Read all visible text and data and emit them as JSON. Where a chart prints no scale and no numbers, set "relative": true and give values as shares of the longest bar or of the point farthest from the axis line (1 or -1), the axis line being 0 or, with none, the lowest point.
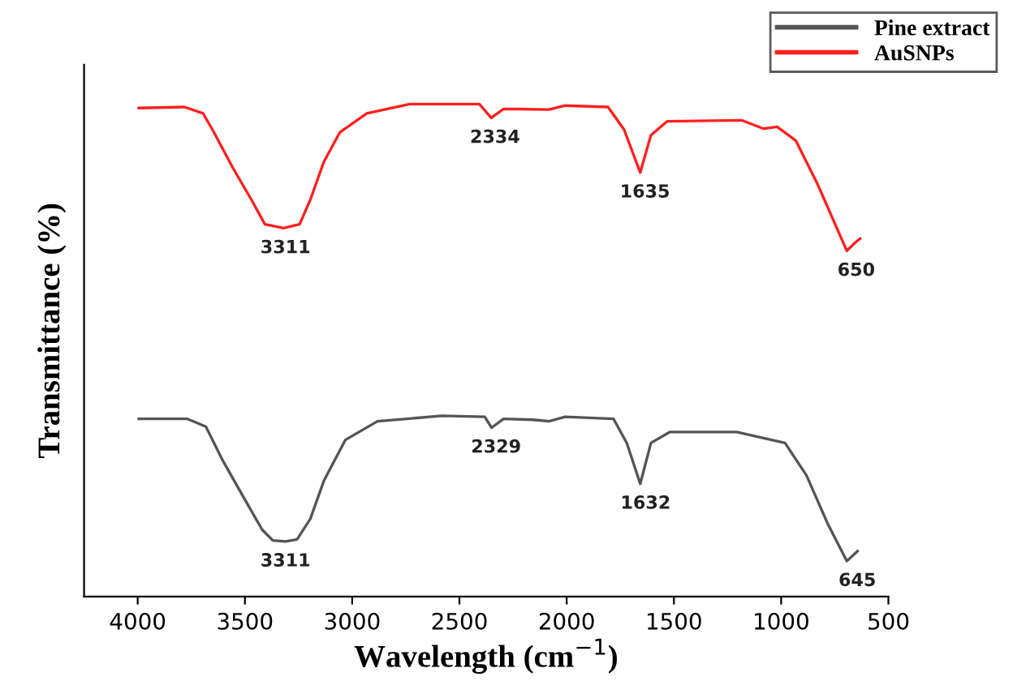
{
  "chart_data": {
    "type": "line",
    "relative": true,
    "xlabel": "Wavelength (cm$^{−1}$)",
    "ylabel": "Transmittance (%)",
    "xlim": [
      4250,
      500
    ],
    "xticks": [
      4000,
      3500,
      3000,
      2500,
      2000,
      1500,
      1000,
      500
    ],
    "legend": "top right",
    "grid": false,
    "marker": "none",
    "line_style": "solid",
    "series": [
      {
        "name": "Pine extract",
        "color": "#555555",
        "x": [
          3995,
          3770,
          3682,
          3607,
          3507,
          3420,
          3370,
          3311,
          3257,
          3195,
          3132,
          3032,
          2882,
          2582,
          2382,
          2350,
          2294,
          2157,
          2082,
          2007,
          1782,
          1720,
          1657,
          1607,
          1520,
          1207,
          982,
          882,
          782,
          694,
          644
        ],
        "values": [
          0.361,
          0.361,
          0.345,
          0.279,
          0.202,
          0.136,
          0.114,
          0.112,
          0.116,
          0.158,
          0.235,
          0.318,
          0.356,
          0.367,
          0.365,
          0.343,
          0.361,
          0.359,
          0.356,
          0.365,
          0.361,
          0.312,
          0.229,
          0.312,
          0.334,
          0.334,
          0.312,
          0.246,
          0.147,
          0.072,
          0.092
        ]
      },
      {
        "name": "AuSNPs",
        "color": "#ff2020",
        "x": [
          3995,
          3782,
          3695,
          3645,
          3557,
          3470,
          3407,
          3320,
          3245,
          3195,
          3132,
          3057,
          2932,
          2732,
          2407,
          2352,
          2294,
          2232,
          2082,
          2007,
          1807,
          1732,
          1657,
          1607,
          1532,
          1182,
          1082,
          1019,
          932,
          832,
          732,
          694,
          657,
          632
        ],
        "values": [
          0.992,
          0.994,
          0.981,
          0.943,
          0.871,
          0.806,
          0.756,
          0.748,
          0.756,
          0.806,
          0.883,
          0.943,
          0.981,
          1,
          1,
          0.972,
          0.99,
          0.99,
          0.989,
          0.997,
          0.994,
          0.948,
          0.861,
          0.937,
          0.965,
          0.967,
          0.95,
          0.954,
          0.926,
          0.839,
          0.74,
          0.702,
          0.718,
          0.727
        ]
      }
    ],
    "annotations": [
      {
        "text": "3311",
        "x": 3311,
        "y": 0.748
      },
      {
        "text": "2334",
        "x": 2334,
        "y": 0.972
      },
      {
        "text": "1635",
        "x": 1635,
        "y": 0.861
      },
      {
        "text": "650",
        "x": 650,
        "y": 0.702
      },
      {
        "text": "3311",
        "x": 3311,
        "y": 0.112
      },
      {
        "text": "2329",
        "x": 2329,
        "y": 0.343
      },
      {
        "text": "1632",
        "x": 1632,
        "y": 0.229
      },
      {
        "text": "645",
        "x": 645,
        "y": 0.072
      }
    ]
  }
}
